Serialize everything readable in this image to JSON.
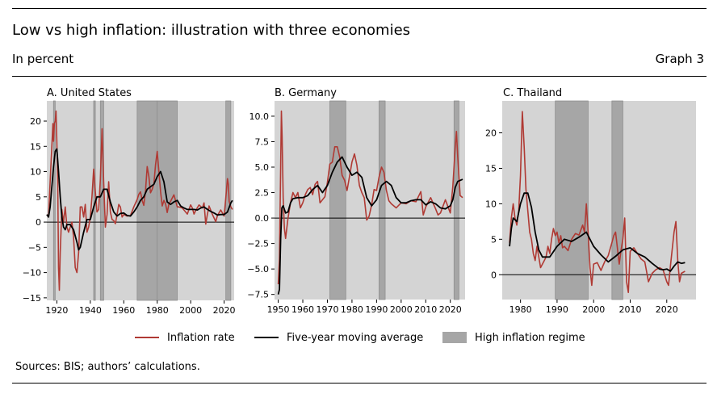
{
  "header": {
    "title": "Low vs high inflation: illustration with three economies",
    "subtitle": "In percent",
    "graph_number": "Graph 3"
  },
  "footer": {
    "sources": "Sources: BIS; authors’ calculations."
  },
  "legend": {
    "inflation_rate": "Inflation rate",
    "moving_average": "Five-year moving average",
    "high_regime": "High inflation regime"
  },
  "colors": {
    "inflation": "#b03a34",
    "moving_average": "#000000",
    "regime": "#a6a6a6",
    "panel_bg": "#d4d4d4"
  },
  "chart_data": [
    {
      "type": "line",
      "title": "A. United States",
      "xlim": [
        1914,
        2026
      ],
      "ylim": [
        -15.5,
        24
      ],
      "xticks": [
        1920,
        1940,
        1960,
        1980,
        2000,
        2020
      ],
      "yticks": [
        -15,
        -10,
        -5,
        0,
        5,
        10,
        15,
        20
      ],
      "regimes": [
        [
          1918,
          1919
        ],
        [
          1942,
          1943
        ],
        [
          1946,
          1948
        ],
        [
          1968,
          1980
        ],
        [
          1980,
          1992
        ],
        [
          2021,
          2024
        ]
      ],
      "series": [
        {
          "name": "Inflation rate",
          "x": [
            1914,
            1915,
            1916,
            1917,
            1917.6,
            1918,
            1918.5,
            1919,
            1919.5,
            1920,
            1920.5,
            1921,
            1921.5,
            1922,
            1923,
            1924,
            1925,
            1926,
            1927,
            1928,
            1929,
            1930,
            1931,
            1932,
            1933,
            1934,
            1935,
            1936,
            1937,
            1938,
            1939,
            1940,
            1941,
            1942,
            1943,
            1944,
            1945,
            1946,
            1947,
            1948,
            1949,
            1950,
            1951,
            1952,
            1953,
            1954,
            1955,
            1956,
            1957,
            1958,
            1959,
            1960,
            1962,
            1964,
            1966,
            1968,
            1969,
            1970,
            1971,
            1972,
            1973,
            1974,
            1975,
            1976,
            1977,
            1978,
            1979,
            1980,
            1981,
            1982,
            1983,
            1984,
            1985,
            1986,
            1987,
            1988,
            1989,
            1990,
            1991,
            1992,
            1993,
            1995,
            1998,
            2000,
            2001,
            2002,
            2003,
            2005,
            2007,
            2008,
            2009,
            2010,
            2011,
            2013,
            2015,
            2016,
            2018,
            2019,
            2020,
            2021,
            2022,
            2022.5,
            2023,
            2024,
            2025
          ],
          "y": [
            1.5,
            1.0,
            8,
            15,
            19.5,
            16,
            19.5,
            20,
            22,
            16,
            8,
            -9,
            -13.5,
            -6,
            2.5,
            0,
            3,
            -1,
            -2,
            -1,
            0,
            -3,
            -9,
            -10,
            -6,
            3,
            3,
            1,
            3.5,
            -2,
            -1,
            1,
            5,
            10.5,
            6,
            2,
            2.5,
            8.5,
            18.5,
            8,
            -1,
            1.5,
            8,
            2,
            0.5,
            0.3,
            -0.3,
            1.5,
            3.5,
            3,
            1,
            1.5,
            1.2,
            1.3,
            3,
            4.5,
            5.5,
            6,
            4.3,
            3.3,
            6.2,
            11,
            9,
            5.8,
            6.5,
            7.6,
            11.3,
            14,
            10,
            6,
            3.2,
            4.3,
            3.6,
            1.9,
            3.6,
            4.1,
            4.8,
            5.4,
            4.2,
            3,
            3,
            2.8,
            1.6,
            3.4,
            2.8,
            1.6,
            2.3,
            3.4,
            2.8,
            3.8,
            -0.4,
            1.6,
            3.2,
            1.5,
            0.1,
            1.3,
            2.4,
            1.8,
            1.2,
            4.7,
            8.6,
            7.5,
            4.1,
            3,
            2.5
          ]
        },
        {
          "name": "Five-year moving average",
          "x": [
            1914,
            1915,
            1916,
            1917,
            1918,
            1919,
            1920,
            1921,
            1922,
            1923,
            1924,
            1925,
            1926,
            1928,
            1930,
            1932,
            1933,
            1934,
            1936,
            1938,
            1940,
            1942,
            1944,
            1946,
            1948,
            1950,
            1952,
            1954,
            1956,
            1958,
            1960,
            1962,
            1964,
            1966,
            1968,
            1970,
            1972,
            1974,
            1976,
            1978,
            1980,
            1982,
            1984,
            1986,
            1988,
            1990,
            1992,
            1994,
            1996,
            1998,
            2000,
            2002,
            2004,
            2006,
            2008,
            2010,
            2012,
            2014,
            2016,
            2018,
            2020,
            2022,
            2024,
            2025
          ],
          "y": [
            1.5,
            1,
            3,
            7,
            11,
            14,
            14.5,
            10,
            5,
            1,
            -1,
            -1.5,
            -0.5,
            -0.5,
            -1.5,
            -4,
            -5.5,
            -5,
            -2,
            0.5,
            0.5,
            3,
            5,
            5,
            6.5,
            6.5,
            4,
            2,
            1.2,
            1.7,
            1.8,
            1.3,
            1.2,
            2,
            3,
            4.3,
            5,
            6.5,
            7,
            7.5,
            9,
            10,
            8,
            4,
            3.5,
            4,
            4.3,
            3.2,
            2.8,
            2.5,
            2.5,
            2.5,
            2.4,
            2.8,
            3,
            2.5,
            2.1,
            1.8,
            1.4,
            1.5,
            1.5,
            2,
            3.8,
            4.3
          ]
        }
      ]
    },
    {
      "type": "line",
      "title": "B. Germany",
      "xlim": [
        1948.5,
        2026
      ],
      "ylim": [
        -8,
        11.5
      ],
      "xticks": [
        1950,
        1960,
        1970,
        1980,
        1990,
        2000,
        2010,
        2020
      ],
      "yticks": [
        -7.5,
        -5.0,
        -2.5,
        0.0,
        2.5,
        5.0,
        7.5,
        10.0
      ],
      "regimes": [
        [
          1971,
          1977.5
        ],
        [
          1991,
          1993.5
        ],
        [
          2021.5,
          2023.5
        ]
      ],
      "series": [
        {
          "name": "Inflation rate",
          "x": [
            1950,
            1950.5,
            1951,
            1951.3,
            1951.6,
            1952,
            1952.5,
            1953,
            1953.5,
            1954,
            1955,
            1956,
            1957,
            1958,
            1959,
            1960,
            1961,
            1962,
            1963,
            1964,
            1965,
            1966,
            1967,
            1968,
            1969,
            1970,
            1971,
            1972,
            1973,
            1974,
            1975,
            1976,
            1977,
            1978,
            1979,
            1980,
            1981,
            1982,
            1983,
            1984,
            1985,
            1986,
            1987,
            1988,
            1989,
            1990,
            1991,
            1992,
            1993,
            1994,
            1995,
            1996,
            1998,
            2000,
            2002,
            2004,
            2006,
            2008,
            2009,
            2010,
            2012,
            2014,
            2015,
            2016,
            2018,
            2020,
            2021,
            2021.5,
            2022,
            2022.5,
            2023,
            2024,
            2025
          ],
          "y": [
            -6.5,
            -4,
            5,
            10.5,
            8,
            2,
            -1,
            -2,
            -1,
            0,
            1.5,
            2.5,
            2,
            2.5,
            1,
            1.5,
            2.3,
            2.8,
            3,
            2.3,
            3.3,
            3.6,
            1.5,
            1.8,
            2.1,
            3.5,
            5.3,
            5.5,
            7,
            7,
            6,
            4.2,
            3.7,
            2.7,
            4.1,
            5.5,
            6.3,
            5.2,
            3.2,
            2.5,
            2,
            -0.2,
            0.2,
            1.3,
            2.8,
            2.7,
            4,
            5,
            4.5,
            2.7,
            1.7,
            1.4,
            1,
            1.5,
            1.4,
            1.7,
            1.6,
            2.6,
            0.3,
            1.1,
            2,
            0.9,
            0.3,
            0.5,
            1.8,
            0.5,
            3.1,
            5,
            7,
            8.5,
            6,
            2.2,
            2
          ]
        },
        {
          "name": "Five-year moving average",
          "x": [
            1950,
            1950.5,
            1951,
            1951.5,
            1952,
            1953,
            1954,
            1955,
            1956,
            1958,
            1960,
            1962,
            1964,
            1966,
            1968,
            1970,
            1972,
            1974,
            1976,
            1978,
            1980,
            1982,
            1984,
            1986,
            1988,
            1990,
            1992,
            1994,
            1996,
            1998,
            2000,
            2002,
            2004,
            2006,
            2008,
            2010,
            2012,
            2014,
            2016,
            2018,
            2020,
            2021,
            2022,
            2023,
            2024,
            2025
          ],
          "y": [
            -7.5,
            -7,
            -2,
            1,
            1.2,
            0.5,
            0.6,
            1.5,
            1.9,
            2,
            2,
            2.2,
            2.8,
            3.2,
            2.5,
            3.2,
            4.5,
            5.5,
            6,
            5,
            4.2,
            4.5,
            4,
            2,
            1.2,
            1.8,
            3.2,
            3.6,
            3.2,
            2,
            1.5,
            1.5,
            1.7,
            1.8,
            1.8,
            1.3,
            1.6,
            1.4,
            1,
            0.9,
            1.2,
            1.8,
            3,
            3.6,
            3.7,
            3.8
          ]
        }
      ]
    },
    {
      "type": "line",
      "title": "C. Thailand",
      "xlim": [
        1975,
        2028
      ],
      "ylim": [
        -3.5,
        24.5
      ],
      "xticks": [
        1980,
        1990,
        2000,
        2010,
        2020
      ],
      "yticks": [
        0,
        5,
        10,
        15,
        20
      ],
      "regimes": [
        [
          1989.5,
          1998.5
        ],
        [
          2005,
          2008
        ]
      ],
      "series": [
        {
          "name": "Inflation rate",
          "x": [
            1977,
            1977.5,
            1978,
            1978.5,
            1979,
            1979.5,
            1980,
            1980.5,
            1981,
            1981.5,
            1982,
            1982.5,
            1983,
            1983.5,
            1984,
            1984.5,
            1985,
            1985.5,
            1986,
            1986.5,
            1987,
            1987.5,
            1988,
            1988.5,
            1989,
            1989.5,
            1990,
            1990.5,
            1991,
            1991.5,
            1992,
            1993,
            1994,
            1995,
            1996,
            1997,
            1997.5,
            1998,
            1998.5,
            1999,
            1999.5,
            2000,
            2001,
            2002,
            2003,
            2004,
            2005,
            2005.5,
            2006,
            2007,
            2007.5,
            2008,
            2008.5,
            2009,
            2009.5,
            2010,
            2011,
            2012,
            2013,
            2014,
            2015,
            2016,
            2017,
            2018,
            2019,
            2020,
            2020.5,
            2021,
            2022,
            2022.5,
            2023,
            2023.5,
            2024,
            2025
          ],
          "y": [
            4.5,
            8,
            10,
            8,
            7,
            9,
            14,
            23,
            18,
            12,
            9,
            6,
            5,
            3,
            2,
            4,
            2.5,
            1,
            1.5,
            2,
            2.5,
            4,
            3,
            5,
            6.5,
            5.5,
            6,
            4.5,
            5.5,
            3.8,
            4,
            3.4,
            5,
            5.8,
            5.6,
            7,
            6,
            10,
            6,
            1,
            -1.5,
            1.5,
            1.7,
            0.6,
            1.8,
            2.7,
            4.5,
            5.5,
            6,
            1.5,
            3.5,
            5,
            8,
            -1,
            -2.5,
            3.3,
            3.8,
            3,
            2.2,
            1.8,
            -1,
            0.2,
            0.7,
            1,
            0.7,
            -1,
            -1.5,
            1.2,
            6,
            7.5,
            2,
            -1,
            0.2,
            0.5
          ]
        },
        {
          "name": "Five-year moving average",
          "x": [
            1977,
            1977.5,
            1978,
            1979,
            1980,
            1981,
            1982,
            1983,
            1984,
            1985,
            1986,
            1987,
            1988,
            1990,
            1992,
            1994,
            1996,
            1998,
            2000,
            2002,
            2004,
            2006,
            2008,
            2010,
            2012,
            2014,
            2016,
            2018,
            2019,
            2020,
            2021,
            2022,
            2023,
            2024,
            2025
          ],
          "y": [
            4,
            6.5,
            8,
            7.5,
            10,
            11.5,
            11.5,
            9.5,
            6,
            3.5,
            2.5,
            2.5,
            2.5,
            4,
            5,
            4.7,
            5.3,
            6,
            4,
            2.8,
            1.8,
            2.6,
            3.5,
            3.8,
            3,
            2.5,
            1.6,
            0.8,
            0.7,
            0.8,
            0.5,
            1.2,
            1.8,
            1.6,
            1.7
          ]
        }
      ]
    }
  ]
}
